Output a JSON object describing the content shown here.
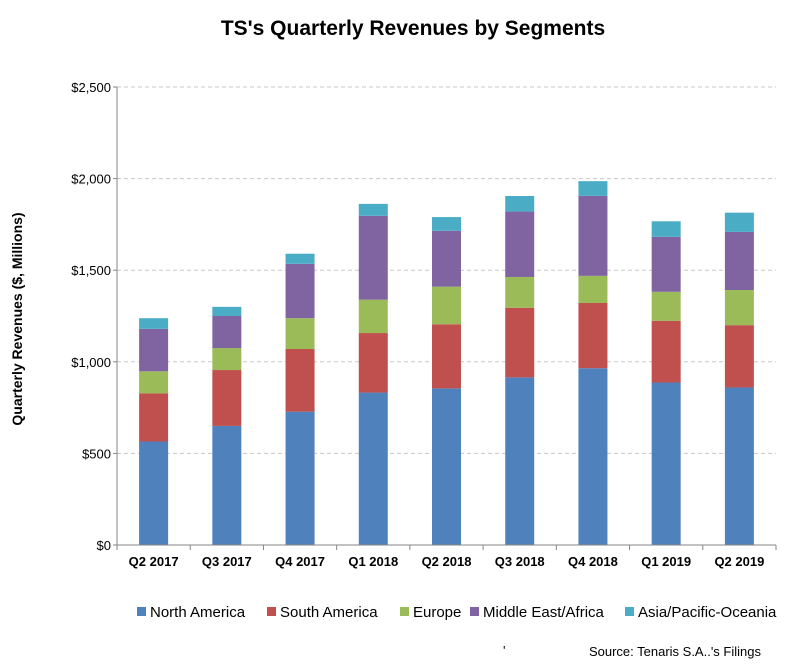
{
  "chart_data": {
    "type": "bar",
    "stacked": true,
    "title": "TS's Quarterly Revenues by Segments",
    "ylabel": "Quarterly Revenues ($, Millions)",
    "xlabel": "",
    "ylim": [
      0,
      2500
    ],
    "yticks": [
      0,
      500,
      1000,
      1500,
      2000,
      2500
    ],
    "ytick_labels": [
      "$0",
      "$500",
      "$1,000",
      "$1,500",
      "$2,000",
      "$2,500"
    ],
    "grid": true,
    "legend_position": "bottom",
    "categories": [
      "Q2 2017",
      "Q3 2017",
      "Q4 2017",
      "Q1 2018",
      "Q2 2018",
      "Q3 2018",
      "Q4 2018",
      "Q1 2019",
      "Q2 2019"
    ],
    "series": [
      {
        "name": "North America",
        "color": "#4f81bd",
        "values": [
          565,
          650,
          728,
          832,
          855,
          915,
          965,
          887,
          860
        ]
      },
      {
        "name": "South America",
        "color": "#c0504d",
        "values": [
          263,
          305,
          342,
          325,
          350,
          380,
          356,
          337,
          340
        ]
      },
      {
        "name": "Europe",
        "color": "#9bbb59",
        "values": [
          120,
          120,
          168,
          182,
          205,
          168,
          148,
          158,
          192
        ]
      },
      {
        "name": "Middle East/Africa",
        "color": "#8064a2",
        "values": [
          232,
          175,
          297,
          458,
          305,
          357,
          437,
          300,
          317
        ]
      },
      {
        "name": "Asia/Pacific-Oceania",
        "color": "#4bacc6",
        "values": [
          58,
          50,
          55,
          65,
          75,
          85,
          80,
          85,
          105
        ]
      }
    ],
    "source_note": "Source: Tenaris S.A..'s Filings",
    "stray_mark": "'"
  }
}
